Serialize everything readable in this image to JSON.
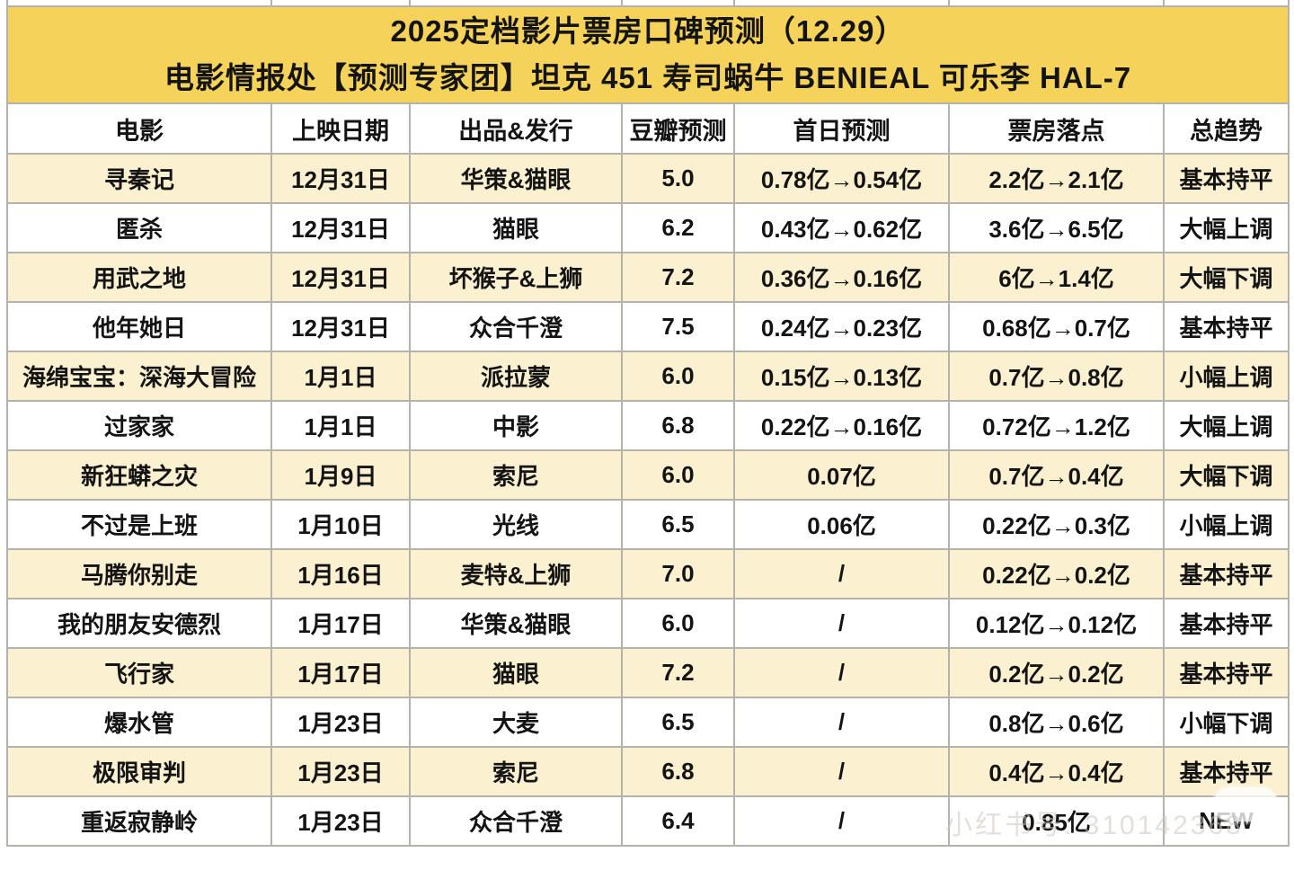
{
  "colors": {
    "header_bg": "#F5D35B",
    "row_alt_bg": "#FBF0CF",
    "grid_line": "#B3B3AC",
    "text": "#141414"
  },
  "watermark": {
    "text": "小红书号: 310142368"
  },
  "chart_data": {
    "type": "table",
    "title": "2025定档影片票房口碑预测（12.29）",
    "subtitle": "电影情报处【预测专家团】坦克 451 寿司蜗牛 BENIEAL 可乐李 HAL-7",
    "columns": [
      "电影",
      "上映日期",
      "出品&发行",
      "豆瓣预测",
      "首日预测",
      "票房落点",
      "总趋势"
    ],
    "rows": [
      [
        "寻秦记",
        "12月31日",
        "华策&猫眼",
        "5.0",
        "0.78亿→0.54亿",
        "2.2亿→2.1亿",
        "基本持平"
      ],
      [
        "匿杀",
        "12月31日",
        "猫眼",
        "6.2",
        "0.43亿→0.62亿",
        "3.6亿→6.5亿",
        "大幅上调"
      ],
      [
        "用武之地",
        "12月31日",
        "坏猴子&上狮",
        "7.2",
        "0.36亿→0.16亿",
        "6亿→1.4亿",
        "大幅下调"
      ],
      [
        "他年她日",
        "12月31日",
        "众合千澄",
        "7.5",
        "0.24亿→0.23亿",
        "0.68亿→0.7亿",
        "基本持平"
      ],
      [
        "海绵宝宝：深海大冒险",
        "1月1日",
        "派拉蒙",
        "6.0",
        "0.15亿→0.13亿",
        "0.7亿→0.8亿",
        "小幅上调"
      ],
      [
        "过家家",
        "1月1日",
        "中影",
        "6.8",
        "0.22亿→0.16亿",
        "0.72亿→1.2亿",
        "大幅上调"
      ],
      [
        "新狂蟒之灾",
        "1月9日",
        "索尼",
        "6.0",
        "0.07亿",
        "0.7亿→0.4亿",
        "大幅下调"
      ],
      [
        "不过是上班",
        "1月10日",
        "光线",
        "6.5",
        "0.06亿",
        "0.22亿→0.3亿",
        "小幅上调"
      ],
      [
        "马腾你别走",
        "1月16日",
        "麦特&上狮",
        "7.0",
        "/",
        "0.22亿→0.2亿",
        "基本持平"
      ],
      [
        "我的朋友安德烈",
        "1月17日",
        "华策&猫眼",
        "6.0",
        "/",
        "0.12亿→0.12亿",
        "基本持平"
      ],
      [
        "飞行家",
        "1月17日",
        "猫眼",
        "7.2",
        "/",
        "0.2亿→0.2亿",
        "基本持平"
      ],
      [
        "爆水管",
        "1月23日",
        "大麦",
        "6.5",
        "/",
        "0.8亿→0.6亿",
        "小幅下调"
      ],
      [
        "极限审判",
        "1月23日",
        "索尼",
        "6.8",
        "/",
        "0.4亿→0.4亿",
        "基本持平"
      ],
      [
        "重返寂静岭",
        "1月23日",
        "众合千澄",
        "6.4",
        "/",
        "0.85亿",
        "NEW"
      ]
    ]
  }
}
